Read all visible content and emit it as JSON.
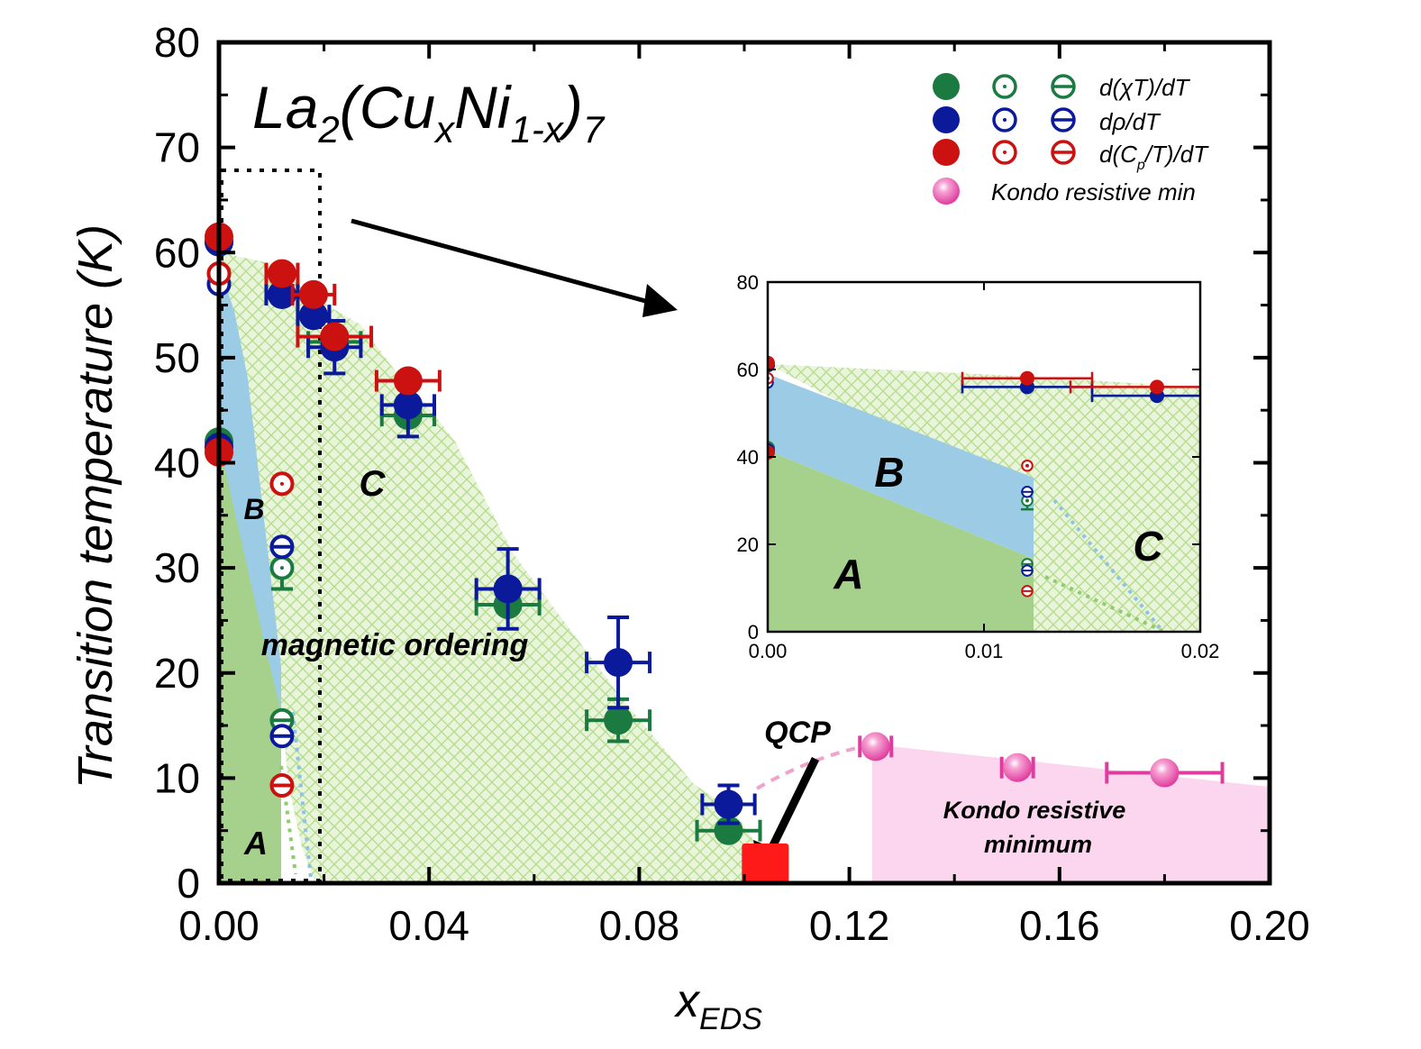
{
  "colors": {
    "green": "#1a7a40",
    "blue": "#0a1a9a",
    "red": "#cc1111",
    "pink": "#e03c9e",
    "qcp": "#ff1a1a",
    "region_a": "#a6d18c",
    "region_b": "#9ccbe6",
    "region_c": "#cbe8a2",
    "region_kondo": "#fcd6ee",
    "light_blue_dot": "#8ec3e6",
    "light_green_dot": "#8fcc6e",
    "pink_dash": "#f2a3cc"
  },
  "chart_data": {
    "type": "scatter",
    "title": "La2(CuxNi1-x)7",
    "title_parts": {
      "base": "La",
      "sub1": "2",
      "mid1": "(Cu",
      "sub2": "x",
      "mid2": "Ni",
      "sub3": "1-x",
      "mid3": ")",
      "sub4": "7"
    },
    "xlabel": "x",
    "xlabel_sub": "EDS",
    "ylabel": "Transition temperature (K)",
    "xlim": [
      0,
      0.2
    ],
    "ylim": [
      0,
      80
    ],
    "x_ticks": [
      "0.00",
      "0.04",
      "0.08",
      "0.12",
      "0.16",
      "0.20"
    ],
    "y_ticks": [
      "0",
      "10",
      "20",
      "30",
      "40",
      "50",
      "60",
      "70",
      "80"
    ],
    "legend": [
      {
        "label": "d(χT)/dT",
        "color": "green"
      },
      {
        "label": "dρ/dT",
        "color": "blue"
      },
      {
        "label": "d(C",
        "label_sub": "p",
        "label_tail": "/T)/dT",
        "color": "red"
      },
      {
        "label": "Kondo resistive min",
        "color": "pink"
      }
    ],
    "region_labels": {
      "a": "A",
      "b": "B",
      "c": "C",
      "magnetic": "magnetic ordering",
      "qcp": "QCP",
      "kondo_line1": "Kondo resistive",
      "kondo_line2": "minimum"
    },
    "series": [
      {
        "name": "d(χT)/dT",
        "color": "green",
        "points": [
          {
            "x": 0.0,
            "y": 61,
            "style": "filled"
          },
          {
            "x": 0.0,
            "y": 42,
            "style": "filled"
          },
          {
            "x": 0.012,
            "y": 56,
            "style": "filled",
            "xerr": 0.003
          },
          {
            "x": 0.012,
            "y": 30,
            "style": "open",
            "yerr": 2
          },
          {
            "x": 0.012,
            "y": 15.5,
            "style": "bar"
          },
          {
            "x": 0.018,
            "y": 54,
            "style": "filled",
            "xerr": 0.003
          },
          {
            "x": 0.022,
            "y": 51.5,
            "style": "filled",
            "xerr": 0.005
          },
          {
            "x": 0.036,
            "y": 44.5,
            "style": "filled",
            "xerr": 0.005
          },
          {
            "x": 0.055,
            "y": 26.5,
            "style": "filled",
            "xerr": 0.006
          },
          {
            "x": 0.076,
            "y": 15.5,
            "style": "filled",
            "xerr": 0.006,
            "yerr": 2
          },
          {
            "x": 0.097,
            "y": 5,
            "style": "filled",
            "xerr": 0.006
          }
        ]
      },
      {
        "name": "dρ/dT",
        "color": "blue",
        "points": [
          {
            "x": 0.0,
            "y": 61,
            "style": "filled"
          },
          {
            "x": 0.0,
            "y": 57,
            "style": "open"
          },
          {
            "x": 0.0,
            "y": 41.5,
            "style": "filled"
          },
          {
            "x": 0.012,
            "y": 56,
            "style": "filled",
            "xerr": 0.003
          },
          {
            "x": 0.012,
            "y": 32,
            "style": "bar"
          },
          {
            "x": 0.012,
            "y": 14,
            "style": "bar"
          },
          {
            "x": 0.018,
            "y": 54,
            "style": "filled",
            "xerr": 0.003
          },
          {
            "x": 0.022,
            "y": 51,
            "style": "filled",
            "xerr": 0.005,
            "yerr": 2.5
          },
          {
            "x": 0.036,
            "y": 45.5,
            "style": "filled",
            "xerr": 0.005,
            "yerr": 3
          },
          {
            "x": 0.055,
            "y": 28,
            "style": "filled",
            "xerr": 0.006,
            "yerr": 3.8
          },
          {
            "x": 0.076,
            "y": 21,
            "style": "filled",
            "xerr": 0.006,
            "yerr": 4.3
          },
          {
            "x": 0.097,
            "y": 7.5,
            "style": "filled",
            "xerr": 0.005,
            "yerr": 1.8
          }
        ]
      },
      {
        "name": "d(Cp/T)/dT",
        "color": "red",
        "points": [
          {
            "x": 0.0,
            "y": 61.5,
            "style": "filled"
          },
          {
            "x": 0.0,
            "y": 58,
            "style": "open"
          },
          {
            "x": 0.0,
            "y": 41,
            "style": "filled"
          },
          {
            "x": 0.012,
            "y": 58,
            "style": "filled",
            "xerr": 0.003
          },
          {
            "x": 0.012,
            "y": 38,
            "style": "open"
          },
          {
            "x": 0.012,
            "y": 9.3,
            "style": "bar"
          },
          {
            "x": 0.018,
            "y": 56,
            "style": "filled",
            "xerr": 0.004
          },
          {
            "x": 0.022,
            "y": 52,
            "style": "filled",
            "xerr": 0.007
          },
          {
            "x": 0.036,
            "y": 47.8,
            "style": "filled",
            "xerr": 0.006
          }
        ]
      },
      {
        "name": "Kondo resistive min",
        "color": "pink",
        "points": [
          {
            "x": 0.125,
            "y": 13,
            "xerr": 0.003
          },
          {
            "x": 0.152,
            "y": 11,
            "xerr": 0.003
          },
          {
            "x": 0.18,
            "y": 10.5,
            "xerr": 0.011
          }
        ]
      }
    ],
    "qcp_point": {
      "x": 0.104,
      "y": 0
    },
    "inset": {
      "xlim": [
        0,
        0.02
      ],
      "ylim": [
        0,
        80
      ],
      "x_ticks": [
        "0.00",
        "0.01",
        "0.02"
      ],
      "y_ticks": [
        "0",
        "20",
        "40",
        "60",
        "80"
      ],
      "labels": {
        "a": "A",
        "b": "B",
        "c": "C"
      }
    }
  }
}
